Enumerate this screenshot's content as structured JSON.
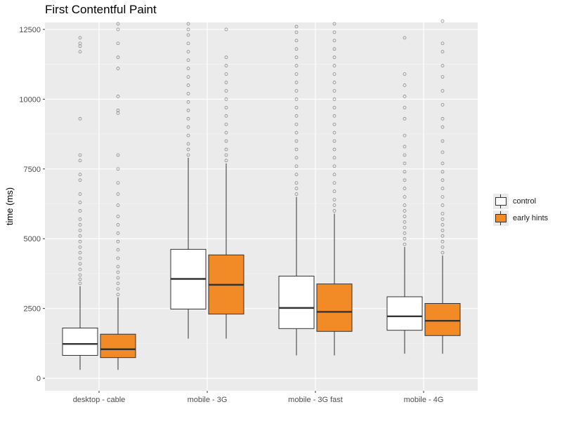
{
  "chart_data": {
    "type": "boxplot",
    "title": "First Contentful Paint",
    "xlabel": "",
    "ylabel": "time (ms)",
    "ylim": [
      -450,
      12750
    ],
    "yticks": [
      0,
      2500,
      5000,
      7500,
      10000,
      12500
    ],
    "ytick_labels": [
      "0",
      "2500",
      "5000",
      "7500",
      "10000",
      "12500"
    ],
    "categories": [
      "desktop - cable",
      "mobile - 3G",
      "mobile - 3G fast",
      "mobile - 4G"
    ],
    "legend_position": "right",
    "grid": true,
    "series": [
      {
        "name": "control",
        "color": "#ffffff",
        "boxes": [
          {
            "lower_whisker": 300,
            "q1": 820,
            "median": 1230,
            "q3": 1800,
            "upper_whisker": 3300,
            "outliers": [
              3400,
              3550,
              3700,
              3900,
              4100,
              4300,
              4500,
              4700,
              4900,
              5100,
              5300,
              5500,
              5700,
              6000,
              6300,
              6600,
              7100,
              7300,
              7800,
              8000,
              9300,
              11700,
              11900,
              12000,
              12200
            ]
          },
          {
            "lower_whisker": 1420,
            "q1": 2480,
            "median": 3560,
            "q3": 4620,
            "upper_whisker": 7900,
            "outliers": [
              8000,
              8200,
              8400,
              8700,
              9000,
              9300,
              9600,
              9900,
              10200,
              10500,
              10800,
              11100,
              11400,
              11700,
              12000,
              12300,
              12500,
              12700
            ]
          },
          {
            "lower_whisker": 820,
            "q1": 1780,
            "median": 2520,
            "q3": 3660,
            "upper_whisker": 6500,
            "outliers": [
              6600,
              6800,
              7000,
              7300,
              7600,
              7900,
              8200,
              8500,
              8800,
              9100,
              9400,
              9700,
              10000,
              10300,
              10600,
              10900,
              11200,
              11500,
              11800,
              12100,
              12400,
              12600
            ]
          },
          {
            "lower_whisker": 880,
            "q1": 1720,
            "median": 2220,
            "q3": 2920,
            "upper_whisker": 4700,
            "outliers": [
              4800,
              5000,
              5200,
              5400,
              5600,
              5800,
              6000,
              6200,
              6500,
              6800,
              7100,
              7400,
              7700,
              8000,
              8300,
              8700,
              9300,
              9700,
              10100,
              10500,
              10900,
              12200
            ]
          }
        ]
      },
      {
        "name": "early hints",
        "color": "#f28a26",
        "boxes": [
          {
            "lower_whisker": 300,
            "q1": 740,
            "median": 1040,
            "q3": 1580,
            "upper_whisker": 2900,
            "outliers": [
              3000,
              3200,
              3400,
              3600,
              3800,
              4000,
              4300,
              4600,
              4900,
              5200,
              5500,
              5800,
              6200,
              6600,
              7000,
              7500,
              8000,
              9500,
              9600,
              10100,
              11100,
              11500,
              12000,
              12500,
              12700
            ]
          },
          {
            "lower_whisker": 1420,
            "q1": 2300,
            "median": 3350,
            "q3": 4420,
            "upper_whisker": 7700,
            "outliers": [
              7800,
              8000,
              8200,
              8500,
              8800,
              9100,
              9400,
              9700,
              10000,
              10300,
              10600,
              10900,
              11200,
              11500,
              12500
            ]
          },
          {
            "lower_whisker": 820,
            "q1": 1680,
            "median": 2380,
            "q3": 3380,
            "upper_whisker": 5900,
            "outliers": [
              6000,
              6200,
              6400,
              6700,
              7000,
              7300,
              7600,
              7900,
              8200,
              8500,
              8800,
              9100,
              9400,
              9700,
              10000,
              10300,
              10600,
              10900,
              11200,
              11500,
              11800,
              12100,
              12400,
              12700
            ]
          },
          {
            "lower_whisker": 880,
            "q1": 1530,
            "median": 2060,
            "q3": 2680,
            "upper_whisker": 4400,
            "outliers": [
              4500,
              4700,
              4900,
              5100,
              5300,
              5500,
              5700,
              5900,
              6200,
              6500,
              6800,
              7100,
              7400,
              7700,
              8100,
              8500,
              9000,
              9300,
              9800,
              10300,
              10800,
              11200,
              11700,
              12000,
              12800
            ]
          }
        ]
      }
    ]
  }
}
